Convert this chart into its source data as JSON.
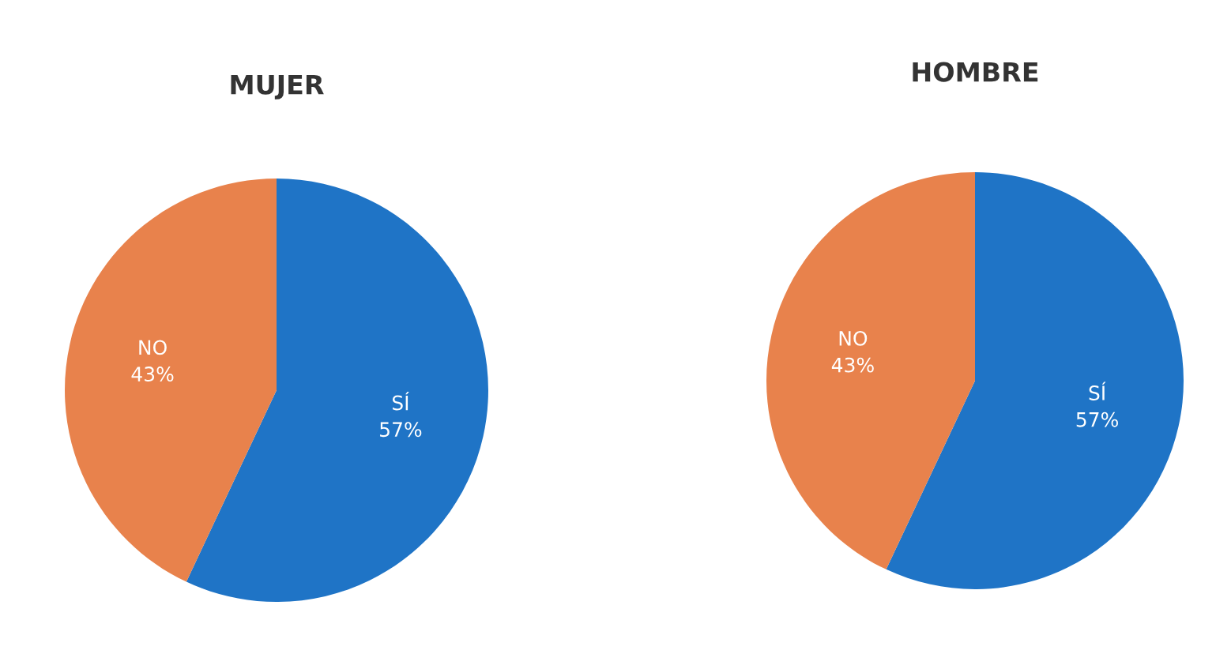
{
  "chart_data": [
    {
      "type": "pie",
      "title": "MUJER",
      "categories": [
        "SÍ",
        "NO"
      ],
      "values": [
        57,
        43
      ],
      "colors": [
        "#1f74c6",
        "#e8824c"
      ],
      "value_labels": [
        "57%",
        "43%"
      ]
    },
    {
      "type": "pie",
      "title": "HOMBRE",
      "categories": [
        "SÍ",
        "NO"
      ],
      "values": [
        57,
        43
      ],
      "colors": [
        "#1f74c6",
        "#e8824c"
      ],
      "value_labels": [
        "57%",
        "43%"
      ]
    }
  ]
}
